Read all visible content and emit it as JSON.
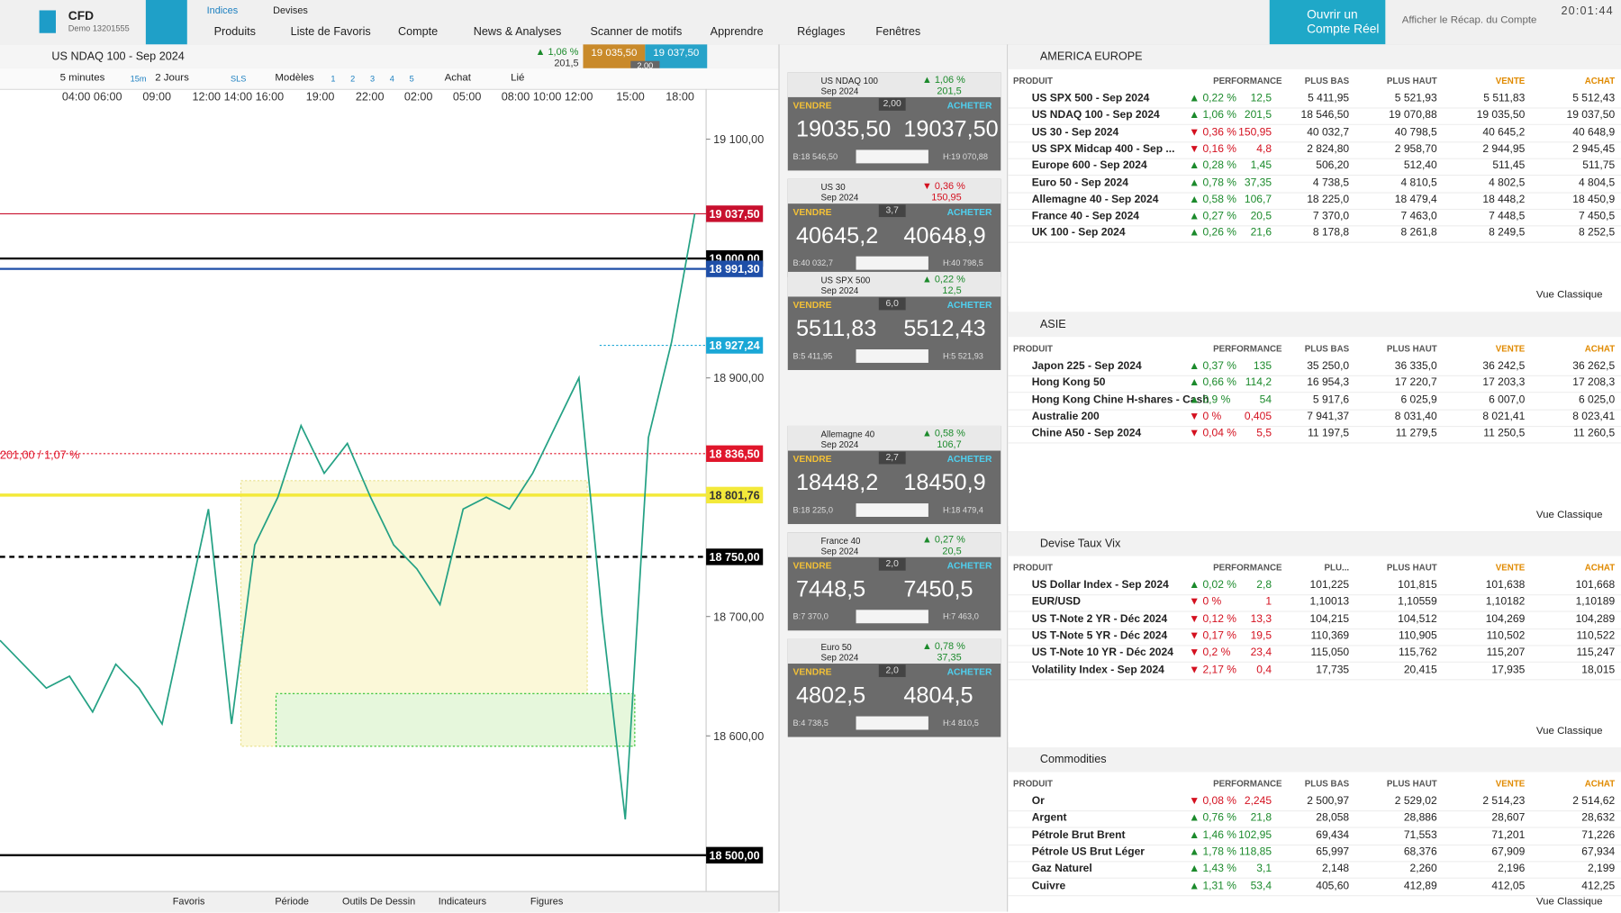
{
  "top_bar": {
    "brand": "CFD",
    "account": "Demo 13201555",
    "tabs": [
      "Indices",
      "Devises"
    ],
    "menu": [
      "Produits",
      "Liste de Favoris",
      "Compte",
      "News & Analyses",
      "Scanner de motifs",
      "Apprendre",
      "Réglages",
      "Fenêtres"
    ],
    "open_account": "Ouvrir un Compte Réel",
    "summary": "Afficher le Récap. du Compte",
    "time": "20:01:44"
  },
  "chart": {
    "instrument": "US NDAQ 100 - Sep 2024",
    "change": "1,06 %",
    "change_points": "201,5",
    "sell": "19 035,50",
    "buy": "19 037,50",
    "spread": "2,00",
    "toolbar": {
      "interval": "5 minutes",
      "range": "2 Jours",
      "sls": "SLS",
      "models": "Modèles",
      "slots": [
        "1",
        "2",
        "3",
        "4",
        "5"
      ],
      "side": "Achat",
      "linked": "Lié",
      "timeframe": "15m"
    },
    "time_labels": [
      "04:00 06:00",
      "09:00",
      "12:00 14:00 16:00",
      "19:00",
      "22:00",
      "02:00",
      "05:00",
      "08:00 10:00 12:00",
      "15:00",
      "18:00"
    ],
    "ylim": [
      18470,
      19130
    ],
    "yticks": [
      {
        "value": 19100,
        "label": "19 100,00"
      },
      {
        "value": 18900,
        "label": "18 900,00"
      },
      {
        "value": 18700,
        "label": "18 700,00"
      },
      {
        "value": 18600,
        "label": "18 600,00"
      }
    ],
    "levels": [
      {
        "label": "19 037,50",
        "value": 19037.5,
        "color": "#c8102e",
        "line": "solid-thin"
      },
      {
        "label": "19 000,00",
        "value": 19000,
        "color": "#000000",
        "line": "solid"
      },
      {
        "label": "18 991,30",
        "value": 18991.3,
        "color": "#1f4fa8",
        "line": "solid"
      },
      {
        "label": "18 927,24",
        "value": 18927.24,
        "color": "#1aa7d6",
        "line": "dotted"
      },
      {
        "label": "18 836,50",
        "value": 18836.5,
        "color": "#e0162b",
        "line": "dotted"
      },
      {
        "label": "18 801,76",
        "value": 18801.76,
        "color": "#f3e93a",
        "line": "thick"
      },
      {
        "label": "18 750,00",
        "value": 18750,
        "color": "#000000",
        "line": "dashed"
      },
      {
        "label": "18 500,00",
        "value": 18500,
        "color": "#000000",
        "line": "solid"
      }
    ],
    "annotation": "201,00 / 1,07 %",
    "price_path": [
      18680,
      18660,
      18640,
      18650,
      18620,
      18660,
      18640,
      18610,
      18700,
      18790,
      18610,
      18760,
      18800,
      18860,
      18820,
      18845,
      18800,
      18760,
      18740,
      18710,
      18790,
      18800,
      18790,
      18820,
      18860,
      18900,
      18700,
      18530,
      18850,
      18930,
      19037.5
    ],
    "line_color": "#24a184"
  },
  "bottom_bar": [
    "Favoris",
    "Période",
    "Outils De Dessin",
    "Indicateurs",
    "Figures"
  ],
  "tile_labels": {
    "sell": "VENDRE",
    "buy": "ACHETER"
  },
  "tiles": [
    {
      "name": "US NDAQ 100",
      "expiry": "Sep 2024",
      "pct": "1,06 %",
      "pts": "201,5",
      "dir": "up",
      "spread": "2,00",
      "sell": "19035,50",
      "buy": "19037,50",
      "low": "B:18 546,50",
      "high": "H:19 070,88"
    },
    {
      "name": "US 30",
      "expiry": "Sep 2024",
      "pct": "0,36 %",
      "pts": "150,95",
      "dir": "down",
      "spread": "3,7",
      "sell": "40645,2",
      "buy": "40648,9",
      "low": "B:40 032,7",
      "high": "H:40 798,5"
    },
    {
      "name": "US SPX 500",
      "expiry": "Sep 2024",
      "pct": "0,22 %",
      "pts": "12,5",
      "dir": "up",
      "spread": "6,0",
      "sell": "5511,83",
      "buy": "5512,43",
      "low": "B:5 411,95",
      "high": "H:5 521,93"
    },
    {
      "name": "Allemagne 40",
      "expiry": "Sep 2024",
      "pct": "0,58 %",
      "pts": "106,7",
      "dir": "up",
      "spread": "2,7",
      "sell": "18448,2",
      "buy": "18450,9",
      "low": "B:18 225,0",
      "high": "H:18 479,4"
    },
    {
      "name": "France 40",
      "expiry": "Sep 2024",
      "pct": "0,27 %",
      "pts": "20,5",
      "dir": "up",
      "spread": "2,0",
      "sell": "7448,5",
      "buy": "7450,5",
      "low": "B:7 370,0",
      "high": "H:7 463,0"
    },
    {
      "name": "Euro 50",
      "expiry": "Sep 2024",
      "pct": "0,78 %",
      "pts": "37,35",
      "dir": "up",
      "spread": "2,0",
      "sell": "4802,5",
      "buy": "4804,5",
      "low": "B:4 738,5",
      "high": "H:4 810,5"
    }
  ],
  "footer_link": "Vue Classique",
  "panels": [
    {
      "title": "AMERICA EUROPE",
      "columns": [
        "PRODUIT",
        "PERFORMANCE",
        "PLUS BAS",
        "PLUS HAUT",
        "VENTE",
        "ACHAT"
      ],
      "rows": [
        [
          "US SPX 500 - Sep 2024",
          "0,22 %",
          "12,5",
          "5 411,95",
          "5 521,93",
          "5 511,83",
          "5 512,43"
        ],
        [
          "US NDAQ 100 - Sep 2024",
          "1,06 %",
          "201,5",
          "18 546,50",
          "19 070,88",
          "19 035,50",
          "19 037,50"
        ],
        [
          "US 30 - Sep 2024",
          "0,36 %",
          "150,95",
          "40 032,7",
          "40 798,5",
          "40 645,2",
          "40 648,9"
        ],
        [
          "US SPX Midcap 400 - Sep ...",
          "0,16 %",
          "4,8",
          "2 824,80",
          "2 958,70",
          "2 944,95",
          "2 945,45"
        ],
        [
          "Europe 600 - Sep 2024",
          "0,28 %",
          "1,45",
          "506,20",
          "512,40",
          "511,45",
          "511,75"
        ],
        [
          "Euro 50 - Sep 2024",
          "0,78 %",
          "37,35",
          "4 738,5",
          "4 810,5",
          "4 802,5",
          "4 804,5"
        ],
        [
          "Allemagne 40 - Sep 2024",
          "0,58 %",
          "106,7",
          "18 225,0",
          "18 479,4",
          "18 448,2",
          "18 450,9"
        ],
        [
          "France 40 - Sep 2024",
          "0,27 %",
          "20,5",
          "7 370,0",
          "7 463,0",
          "7 448,5",
          "7 450,5"
        ],
        [
          "UK 100 - Sep 2024",
          "0,26 %",
          "21,6",
          "8 178,8",
          "8 261,8",
          "8 249,5",
          "8 252,5"
        ]
      ],
      "dirs": [
        "up",
        "up",
        "down",
        "down",
        "up",
        "up",
        "up",
        "up",
        "up"
      ]
    },
    {
      "title": "ASIE",
      "columns": [
        "PRODUIT",
        "PERFORMANCE",
        "PLUS BAS",
        "PLUS HAUT",
        "VENTE",
        "ACHAT"
      ],
      "rows": [
        [
          "Japon 225 - Sep 2024",
          "0,37 %",
          "135",
          "35 250,0",
          "36 335,0",
          "36 242,5",
          "36 262,5"
        ],
        [
          "Hong Kong 50",
          "0,66 %",
          "114,2",
          "16 954,3",
          "17 220,7",
          "17 203,3",
          "17 208,3"
        ],
        [
          "Hong Kong Chine H-shares - Cash",
          "0,9 %",
          "54",
          "5 917,6",
          "6 025,9",
          "6 007,0",
          "6 025,0"
        ],
        [
          "Australie 200",
          "0 %",
          "0,405",
          "7 941,37",
          "8 031,40",
          "8 021,41",
          "8 023,41"
        ],
        [
          "Chine A50 - Sep 2024",
          "0,04 %",
          "5,5",
          "11 197,5",
          "11 279,5",
          "11 250,5",
          "11 260,5"
        ]
      ],
      "dirs": [
        "up",
        "up",
        "up",
        "down",
        "down"
      ]
    },
    {
      "title": "Devise Taux Vix",
      "columns": [
        "PRODUIT",
        "PERFORMANCE",
        "PLU...",
        "PLUS HAUT",
        "VENTE",
        "ACHAT"
      ],
      "rows": [
        [
          "US Dollar Index - Sep 2024",
          "0,02 %",
          "2,8",
          "101,225",
          "101,815",
          "101,638",
          "101,668"
        ],
        [
          "EUR/USD",
          "0 %",
          "1",
          "1,10013",
          "1,10559",
          "1,10182",
          "1,10189"
        ],
        [
          "US T-Note 2 YR - Déc 2024",
          "0,12 %",
          "13,3",
          "104,215",
          "104,512",
          "104,269",
          "104,289"
        ],
        [
          "US T-Note 5 YR - Déc 2024",
          "0,17 %",
          "19,5",
          "110,369",
          "110,905",
          "110,502",
          "110,522"
        ],
        [
          "US T-Note 10 YR - Déc 2024",
          "0,2 %",
          "23,4",
          "115,050",
          "115,762",
          "115,207",
          "115,247"
        ],
        [
          "Volatility Index - Sep 2024",
          "2,17 %",
          "0,4",
          "17,735",
          "20,415",
          "17,935",
          "18,015"
        ]
      ],
      "dirs": [
        "up",
        "down",
        "down",
        "down",
        "down",
        "down"
      ]
    },
    {
      "title": "Commodities",
      "columns": [
        "PRODUIT",
        "PERFORMANCE",
        "PLUS BAS",
        "PLUS HAUT",
        "VENTE",
        "ACHAT"
      ],
      "rows": [
        [
          "Or",
          "0,08 %",
          "2,245",
          "2 500,97",
          "2 529,02",
          "2 514,23",
          "2 514,62"
        ],
        [
          "Argent",
          "0,76 %",
          "21,8",
          "28,058",
          "28,886",
          "28,607",
          "28,632"
        ],
        [
          "Pétrole Brut Brent",
          "1,46 %",
          "102,95",
          "69,434",
          "71,553",
          "71,201",
          "71,226"
        ],
        [
          "Pétrole US Brut Léger",
          "1,78 %",
          "118,85",
          "65,997",
          "68,376",
          "67,909",
          "67,934"
        ],
        [
          "Gaz Naturel",
          "1,43 %",
          "3,1",
          "2,148",
          "2,260",
          "2,196",
          "2,199"
        ],
        [
          "Cuivre",
          "1,31 %",
          "53,4",
          "405,60",
          "412,89",
          "412,05",
          "412,25"
        ]
      ],
      "dirs": [
        "down",
        "up",
        "up",
        "up",
        "up",
        "up"
      ]
    }
  ]
}
